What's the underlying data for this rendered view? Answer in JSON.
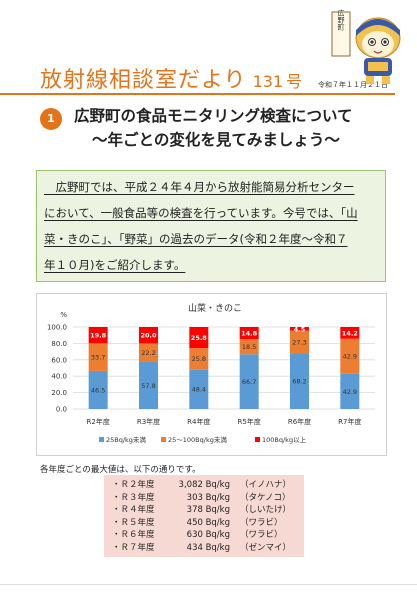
{
  "header": {
    "title": "放射線相談室だより",
    "issue_number": "131",
    "issue_suffix": "号",
    "date": "令和７年１１月２１日",
    "mascot_sign": "広野町"
  },
  "section": {
    "number": "1",
    "title_line1": "広野町の食品モニタリング検査について",
    "title_line2": "～年ごとの変化を見てみましょう～"
  },
  "intro": {
    "lines": [
      "　広野町では、平成２４年４月から放射能簡易分析センター",
      "において、一般食品等の検査を行っています。今号では、「山",
      "菜・きのこ」、「野菜」の過去のデータ(令和２年度～令和７",
      "年１０月)をご紹介します。"
    ]
  },
  "chart_data": {
    "type": "bar",
    "stacked": true,
    "title": "山菜・きのこ",
    "ylabel": "%",
    "ylim": [
      0,
      100
    ],
    "yticks": [
      "0.0",
      "20.0",
      "40.0",
      "60.0",
      "80.0",
      "100.0"
    ],
    "categories": [
      "R2年度",
      "R3年度",
      "R4年度",
      "R5年度",
      "R6年度",
      "R7年度"
    ],
    "series": [
      {
        "name": "25Bq/kg未満",
        "color": "#5b9bd5",
        "values": [
          46.5,
          57.8,
          48.4,
          66.7,
          68.2,
          42.9
        ]
      },
      {
        "name": "25～100Bq/kg未満",
        "color": "#ed7d31",
        "values": [
          33.7,
          22.2,
          25.8,
          18.5,
          27.3,
          42.9
        ]
      },
      {
        "name": "100Bq/kg以上",
        "color": "#ff0000",
        "values": [
          19.8,
          20.0,
          25.8,
          14.8,
          4.5,
          14.2
        ]
      }
    ],
    "grid": true,
    "legend": "bottom"
  },
  "notes": {
    "caption": "各年度ごとの最大値は、以下の通りです。",
    "rows": [
      {
        "label": "・Ｒ２年度",
        "value": "3,082 Bq/kg",
        "item": "（イノハナ）"
      },
      {
        "label": "・Ｒ３年度",
        "value": "303 Bq/kg",
        "item": "（タケノコ）"
      },
      {
        "label": "・Ｒ４年度",
        "value": "378 Bq/kg",
        "item": "（しいたけ）"
      },
      {
        "label": "・Ｒ５年度",
        "value": "450 Bq/kg",
        "item": "（ワラビ）"
      },
      {
        "label": "・Ｒ６年度",
        "value": "630 Bq/kg",
        "item": "（ワラビ）"
      },
      {
        "label": "・Ｒ７年度",
        "value": "434 Bq/kg",
        "item": "（ゼンマイ）"
      }
    ]
  }
}
